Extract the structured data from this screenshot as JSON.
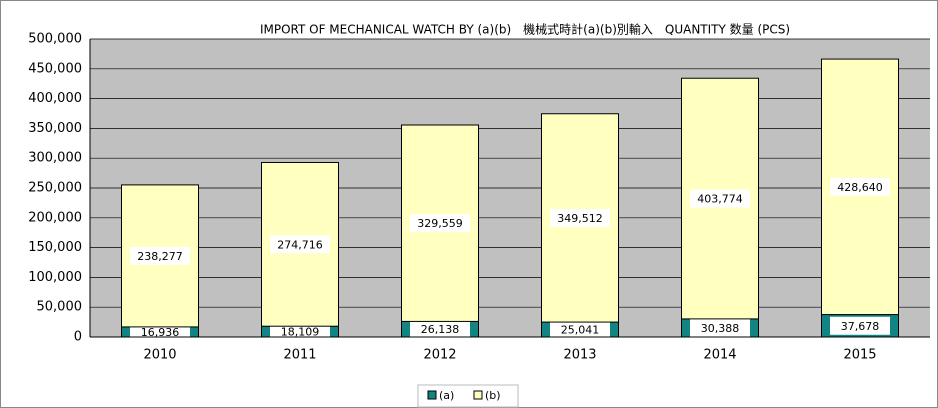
{
  "chart_data": {
    "type": "stacked_bar",
    "title": "IMPORT OF MECHANICAL WATCH BY (a)(b)　機械式時計(a)(b)別輸入　QUANTITY 数量 (PCS)",
    "categories": [
      "2010",
      "2011",
      "2012",
      "2013",
      "2014",
      "2015"
    ],
    "series": [
      {
        "name": "(a)",
        "color": "#138484",
        "values": [
          16936,
          18109,
          26138,
          25041,
          30388,
          37678
        ],
        "value_labels": [
          "16,936",
          "18,109",
          "26,138",
          "25,041",
          "30,388",
          "37,678"
        ]
      },
      {
        "name": "(b)",
        "color": "#ffffc0",
        "values": [
          238277,
          274716,
          329559,
          349512,
          403774,
          428640
        ],
        "value_labels": [
          "238,277",
          "274,716",
          "329,559",
          "349,512",
          "403,774",
          "428,640"
        ]
      }
    ],
    "ylim": [
      0,
      500000
    ],
    "yticks": [
      0,
      {
        "value": 50000,
        "label": "50,000"
      },
      {
        "value": 100000,
        "label": "100,000"
      },
      {
        "value": 150000,
        "label": "150,000"
      },
      {
        "value": 200000,
        "label": "200,000"
      },
      {
        "value": 250000,
        "label": "250,000"
      },
      {
        "value": 300000,
        "label": "300,000"
      },
      {
        "value": 350000,
        "label": "350,000"
      },
      {
        "value": 400000,
        "label": "400,000"
      },
      {
        "value": 450000,
        "label": "450,000"
      },
      {
        "value": 500000,
        "label": {
          "value": 500000,
          "label": "500,000"
        }
      }
    ],
    "grid": true,
    "legend": "bottom"
  }
}
